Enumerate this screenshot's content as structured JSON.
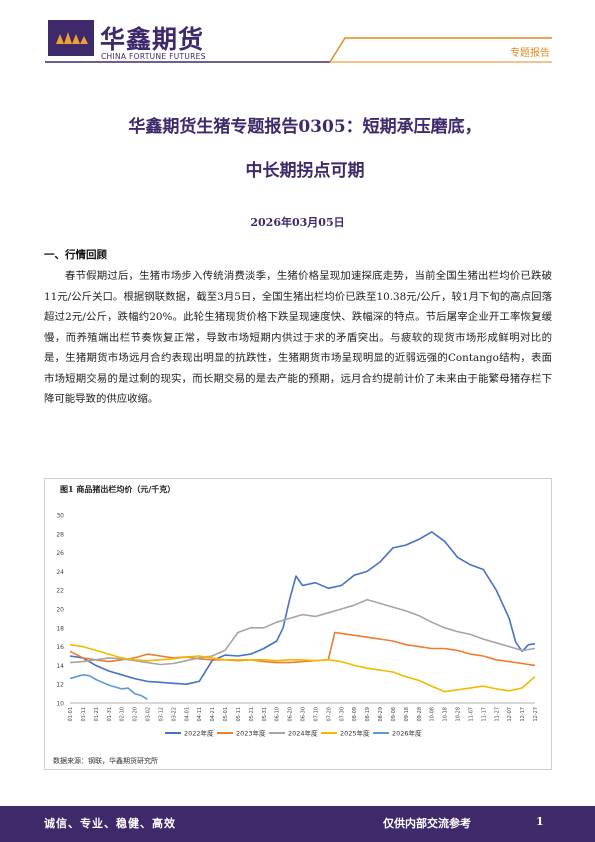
{
  "header": {
    "logo_cn": "华鑫期货",
    "logo_en": "CHINA FORTUNE FUTURES",
    "tag": "专题报告"
  },
  "title_line1": "华鑫期货生猪专题报告0305：短期承压磨底，",
  "title_line2": "中长期拐点可期",
  "date": "2026年03月05日",
  "section1": "一、行情回顾",
  "paragraph": "春节假期过后，生猪市场步入传统消费淡季，生猪价格呈现加速探底走势，当前全国生猪出栏均价已跌破11元/公斤关口。根据钢联数据，截至3月5日，全国生猪出栏均价已跌至10.38元/公斤，较1月下旬的高点回落超过2元/公斤，跌幅约20%。此轮生猪现货价格下跌呈现速度快、跌幅深的特点。节后屠宰企业开工率恢复缓慢，而养殖端出栏节奏恢复正常，导致市场短期内供过于求的矛盾突出。与疲软的现货市场形成鲜明对比的是，生猪期货市场远月合约表现出明显的抗跌性，生猪期货市场呈现明显的近弱远强的Contango结构，表面市场短期交易的是过剩的现实，而长期交易的是去产能的预期，远月合约提前计价了未来由于能繁母猪存栏下降可能导致的供应收缩。",
  "chart_title": "图1  商品猪出栏均价（元/千克）",
  "source": "数据来源：钢联，华鑫期货研究所",
  "footer": {
    "left": "诚信、专业、稳健、高效",
    "right": "仅供内部交流参考",
    "page": "1"
  },
  "chart_data": {
    "type": "line",
    "title": "图1  商品猪出栏均价（元/千克）",
    "ylim": [
      10,
      30
    ],
    "yticks": [
      10,
      12,
      14,
      16,
      18,
      20,
      22,
      24,
      26,
      28,
      30
    ],
    "xticks": [
      "01-01",
      "01-11",
      "01-21",
      "01-31",
      "02-10",
      "02-20",
      "03-02",
      "03-12",
      "03-22",
      "04-01",
      "04-11",
      "04-21",
      "05-01",
      "05-11",
      "05-21",
      "05-31",
      "06-10",
      "06-20",
      "06-30",
      "07-10",
      "07-20",
      "07-30",
      "08-09",
      "08-19",
      "08-29",
      "09-08",
      "09-18",
      "09-28",
      "10-08",
      "10-18",
      "10-28",
      "11-07",
      "11-17",
      "11-27",
      "12-07",
      "12-17",
      "12-27"
    ],
    "x_positions": [
      0,
      10,
      20,
      30,
      40,
      50,
      60,
      70,
      80,
      90,
      100,
      110,
      120,
      130,
      140,
      150,
      160,
      170,
      180,
      190,
      200,
      210,
      220,
      230,
      240,
      250,
      260,
      270,
      280,
      290,
      300,
      310,
      320,
      330,
      340,
      350,
      360
    ],
    "grid": false,
    "legend": "bottom",
    "series": [
      {
        "name": "2022年度",
        "color": "#4472c4",
        "x": [
          0,
          10,
          20,
          30,
          40,
          50,
          60,
          70,
          80,
          90,
          100,
          110,
          120,
          130,
          140,
          150,
          160,
          165,
          170,
          175,
          180,
          190,
          200,
          210,
          220,
          230,
          240,
          250,
          260,
          270,
          280,
          290,
          300,
          310,
          320,
          330,
          340,
          345,
          350,
          355,
          360
        ],
        "y": [
          15.0,
          14.8,
          14.0,
          13.4,
          13.0,
          12.6,
          12.3,
          12.2,
          12.1,
          12.0,
          12.3,
          14.5,
          15.1,
          15.0,
          15.2,
          15.8,
          16.6,
          18.0,
          21.0,
          23.5,
          22.5,
          22.8,
          22.2,
          22.5,
          23.6,
          24.0,
          25.0,
          26.5,
          26.8,
          27.4,
          28.2,
          27.2,
          25.5,
          24.7,
          24.2,
          22.0,
          19.0,
          16.5,
          15.5,
          16.2,
          16.3
        ]
      },
      {
        "name": "2023年度",
        "color": "#ed7d31",
        "x": [
          0,
          10,
          20,
          30,
          40,
          50,
          60,
          70,
          80,
          90,
          100,
          110,
          120,
          130,
          140,
          150,
          160,
          170,
          180,
          190,
          200,
          205,
          210,
          220,
          230,
          240,
          250,
          260,
          270,
          280,
          290,
          300,
          310,
          320,
          330,
          340,
          350,
          360
        ],
        "y": [
          15.5,
          14.8,
          14.6,
          14.4,
          14.6,
          14.8,
          15.2,
          15.0,
          14.8,
          14.9,
          14.7,
          14.6,
          14.6,
          14.5,
          14.6,
          14.4,
          14.3,
          14.3,
          14.4,
          14.5,
          14.6,
          17.5,
          17.4,
          17.2,
          17.0,
          16.8,
          16.6,
          16.2,
          16.0,
          15.8,
          15.8,
          15.6,
          15.2,
          15.0,
          14.6,
          14.4,
          14.2,
          14.0
        ]
      },
      {
        "name": "2024年度",
        "color": "#a5a5a5",
        "x": [
          0,
          10,
          20,
          30,
          40,
          50,
          60,
          70,
          80,
          90,
          100,
          110,
          120,
          130,
          140,
          150,
          160,
          170,
          180,
          190,
          200,
          210,
          220,
          230,
          240,
          250,
          260,
          270,
          280,
          290,
          300,
          310,
          320,
          330,
          340,
          350,
          360
        ],
        "y": [
          14.3,
          14.4,
          14.6,
          14.8,
          14.7,
          14.5,
          14.3,
          14.1,
          14.2,
          14.5,
          14.8,
          15.0,
          15.6,
          17.5,
          18.0,
          18.0,
          18.6,
          19.0,
          19.4,
          19.2,
          19.6,
          20.0,
          20.4,
          21.0,
          20.6,
          20.2,
          19.8,
          19.3,
          18.6,
          18.0,
          17.6,
          17.3,
          16.8,
          16.4,
          16.0,
          15.6,
          15.8
        ]
      },
      {
        "name": "2025年度",
        "color": "#f5b800",
        "x": [
          0,
          10,
          20,
          30,
          40,
          50,
          60,
          70,
          80,
          90,
          100,
          110,
          120,
          130,
          140,
          150,
          160,
          170,
          180,
          190,
          200,
          210,
          220,
          230,
          240,
          250,
          260,
          270,
          280,
          290,
          300,
          310,
          320,
          330,
          340,
          350,
          360
        ],
        "y": [
          16.2,
          16.0,
          15.6,
          15.2,
          14.8,
          14.6,
          14.5,
          14.6,
          14.7,
          14.9,
          15.0,
          14.8,
          14.6,
          14.6,
          14.6,
          14.6,
          14.5,
          14.6,
          14.6,
          14.5,
          14.6,
          14.4,
          14.0,
          13.7,
          13.5,
          13.3,
          12.8,
          12.4,
          11.8,
          11.2,
          11.4,
          11.6,
          11.8,
          11.5,
          11.3,
          11.6,
          12.8
        ]
      },
      {
        "name": "2026年度",
        "color": "#5b9bd5",
        "x": [
          0,
          5,
          10,
          15,
          20,
          25,
          30,
          35,
          40,
          45,
          50,
          55,
          60
        ],
        "y": [
          12.6,
          12.8,
          13.0,
          12.9,
          12.5,
          12.2,
          11.9,
          11.7,
          11.5,
          11.6,
          11.0,
          10.8,
          10.4
        ]
      }
    ]
  }
}
